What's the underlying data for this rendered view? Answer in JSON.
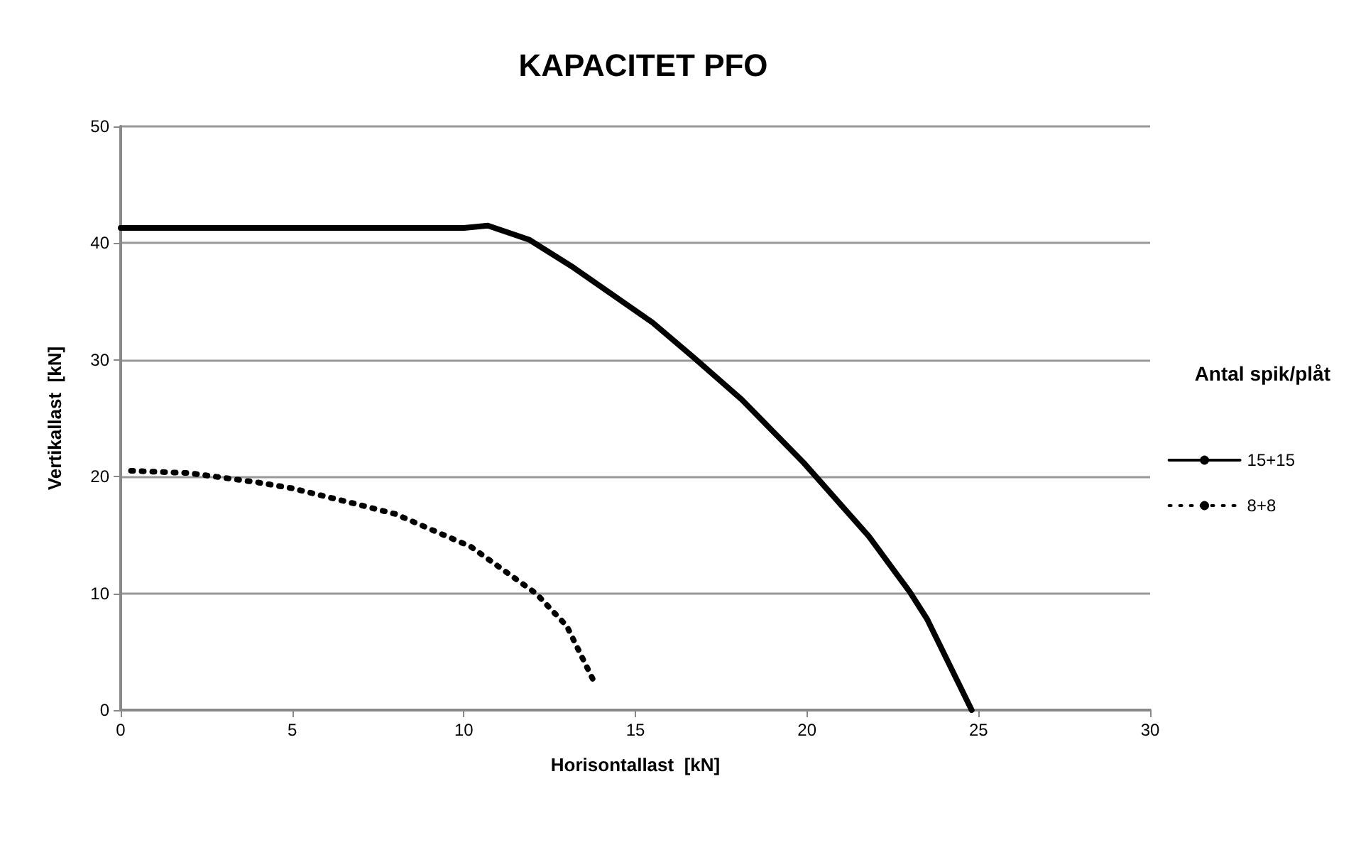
{
  "chart_data": {
    "type": "line",
    "title": "KAPACITET PFO",
    "xlabel": "Horisontallast  [kN]",
    "ylabel": "Vertikallast  [kN]",
    "legend_title": "Antal spik/plåt",
    "legend": "right",
    "grid": "y",
    "marker": "none",
    "xlim": [
      0,
      30
    ],
    "xticks": [
      0,
      5,
      10,
      15,
      20,
      25,
      30
    ],
    "ylim": [
      0,
      50
    ],
    "yticks": [
      0,
      10,
      20,
      30,
      40,
      50
    ],
    "series": [
      {
        "name": "15+15",
        "color": "#000000",
        "line_style": "solid",
        "x": [
          0,
          5,
          8.8,
          10,
          10.7,
          11.9,
          13.2,
          15.5,
          16.7,
          18.1,
          19.9,
          21.8,
          23.0,
          23.5,
          24.8
        ],
        "values": [
          41.3,
          41.3,
          41.3,
          41.3,
          41.5,
          40.3,
          37.9,
          33.2,
          30.2,
          26.6,
          21.2,
          14.9,
          10.1,
          7.8,
          0
        ]
      },
      {
        "name": "8+8",
        "color": "#000000",
        "line_style": "dotted",
        "x": [
          0.3,
          2,
          4,
          5,
          6.8,
          8.0,
          10.2,
          12.1,
          13.0,
          13.4,
          13.8
        ],
        "values": [
          20.5,
          20.3,
          19.5,
          19.0,
          17.7,
          16.8,
          14.0,
          10.0,
          7.2,
          4.8,
          2.4
        ]
      }
    ]
  }
}
